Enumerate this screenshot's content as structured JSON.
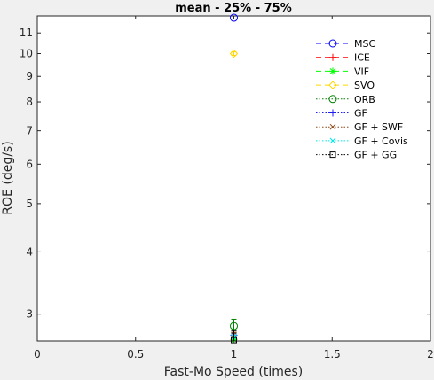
{
  "chart_data": {
    "type": "scatter",
    "title": "mean - 25% - 75%",
    "xlabel": "Fast-Mo Speed (times)",
    "ylabel": "ROE (deg/s)",
    "xlim": [
      0,
      2
    ],
    "ylim": [
      2.65,
      11.9
    ],
    "yscale": "log",
    "xticks": [
      "0",
      "0.5",
      "1",
      "1.5",
      "2"
    ],
    "xtick_values": [
      0,
      0.5,
      1,
      1.5,
      2
    ],
    "yticks": [
      "3",
      "4",
      "5",
      "6",
      "7",
      "8",
      "9",
      "10",
      "11"
    ],
    "ytick_values": [
      3,
      4,
      5,
      6,
      7,
      8,
      9,
      10,
      11
    ],
    "grid": false,
    "legend_position": "top-right",
    "series": [
      {
        "name": "MSC",
        "color": "#0000ff",
        "marker": "circle",
        "line": "dash",
        "x": 1,
        "y": 11.8,
        "low": 11.8,
        "high": 11.8
      },
      {
        "name": "ICE",
        "color": "#ff0000",
        "marker": "plus",
        "line": "dash",
        "x": 1,
        "y": 2.67,
        "low": 2.66,
        "high": 2.68
      },
      {
        "name": "VIF",
        "color": "#00ff00",
        "marker": "asterisk",
        "line": "dash",
        "x": 1,
        "y": 2.67,
        "low": 2.66,
        "high": 2.68
      },
      {
        "name": "SVO",
        "color": "#ffd700",
        "marker": "diamond",
        "line": "dash",
        "x": 1,
        "y": 10.0,
        "low": 9.92,
        "high": 10.08
      },
      {
        "name": "ORB",
        "color": "#008000",
        "marker": "circle",
        "line": "dot",
        "x": 1,
        "y": 2.84,
        "low": 2.75,
        "high": 2.93
      },
      {
        "name": "GF",
        "color": "#1e1ef0",
        "marker": "plus",
        "line": "dot",
        "x": 1,
        "y": 2.72,
        "low": 2.7,
        "high": 2.74
      },
      {
        "name": "GF + SWF",
        "color": "#8b4513",
        "marker": "cross",
        "line": "dot",
        "x": 1,
        "y": 2.73,
        "low": 2.71,
        "high": 2.76
      },
      {
        "name": "GF + Covis",
        "color": "#00e5e5",
        "marker": "cross",
        "line": "dot",
        "x": 1,
        "y": 2.7,
        "low": 2.69,
        "high": 2.72
      },
      {
        "name": "GF + GG",
        "color": "#000000",
        "marker": "square",
        "line": "dot",
        "x": 1,
        "y": 2.66,
        "low": 2.65,
        "high": 2.78
      }
    ]
  }
}
